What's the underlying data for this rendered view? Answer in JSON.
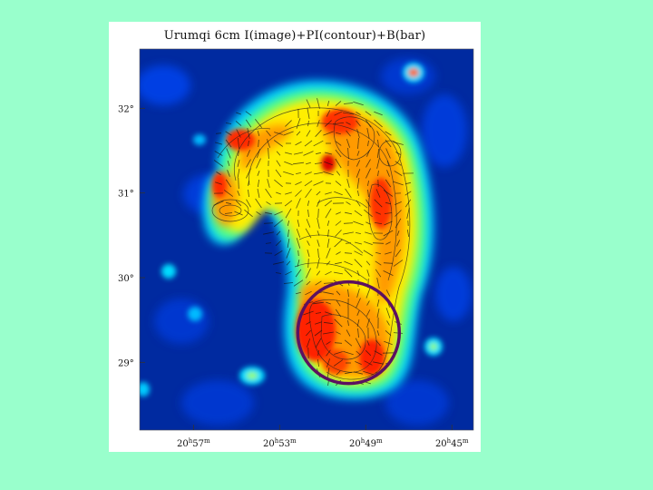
{
  "chart_data": {
    "type": "heatmap",
    "title": "Urumqi 6cm I(image)+PI(contour)+B(bar)",
    "xlabel": "",
    "ylabel": "",
    "x_ticks": [
      {
        "h": "20",
        "m": "57",
        "value_minutes_ra": 1257
      },
      {
        "h": "20",
        "m": "53",
        "value_minutes_ra": 1253
      },
      {
        "h": "20",
        "m": "49",
        "value_minutes_ra": 1249
      },
      {
        "h": "20",
        "m": "45",
        "value_minutes_ra": 1245
      }
    ],
    "y_ticks": [
      {
        "label": "32°",
        "value": 32
      },
      {
        "label": "31°",
        "value": 31
      },
      {
        "label": "30°",
        "value": 30
      },
      {
        "label": "29°",
        "value": 29
      }
    ],
    "xlim_minutes_ra": [
      1259.5,
      1244
    ],
    "ylim_deg": [
      28.2,
      32.7
    ],
    "colormap": [
      "#00008c",
      "#0033ff",
      "#00c8ff",
      "#44ff88",
      "#ffff00",
      "#ff9900",
      "#ff2200",
      "#cc0000"
    ],
    "background_color": "#002aa0",
    "annotation_circle": {
      "ra_minutes": 1249.8,
      "dec_deg": 29.35,
      "radius_deg": 0.6,
      "color": "#5c1060"
    }
  }
}
